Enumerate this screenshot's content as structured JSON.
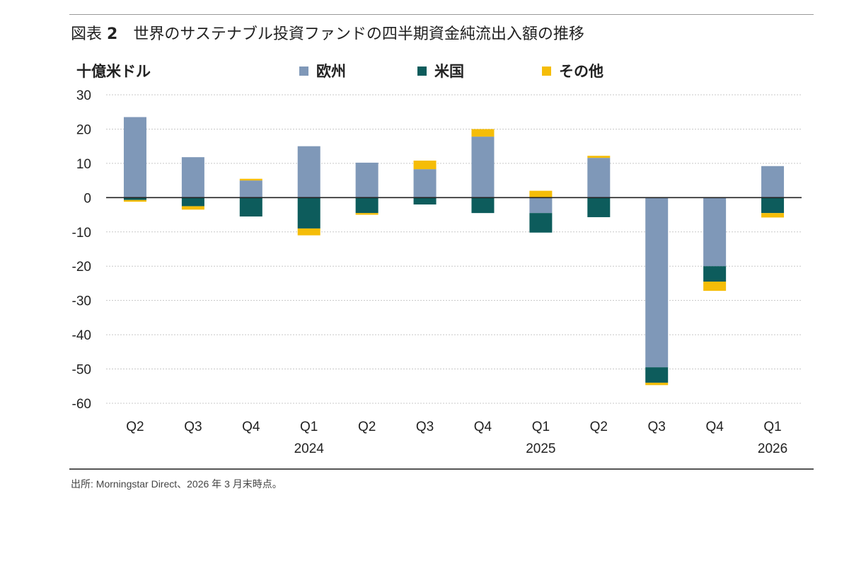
{
  "figure": {
    "label": "図表",
    "number": "2",
    "title": "世界のサステナブル投資ファンドの四半期資金純流出入額の推移",
    "source": "出所: Morningstar Direct、2026 年 3 月末時点。"
  },
  "chart_data": {
    "type": "bar",
    "stacked": true,
    "ylabel": "十億米ドル",
    "ylim": [
      -60,
      30
    ],
    "yticks": [
      30,
      20,
      10,
      0,
      -10,
      -20,
      -30,
      -40,
      -50,
      -60
    ],
    "grid": true,
    "legend_position": "top",
    "categories": [
      "Q2",
      "Q3",
      "Q4",
      "Q1",
      "Q2",
      "Q3",
      "Q4",
      "Q1",
      "Q2",
      "Q3",
      "Q4",
      "Q1"
    ],
    "year_labels": [
      "",
      "",
      "",
      "2024",
      "",
      "",
      "",
      "2025",
      "",
      "",
      "",
      "2026"
    ],
    "series": [
      {
        "name": "欧州",
        "color": "#7f98b8",
        "values": [
          23.5,
          11.8,
          5.0,
          15.0,
          10.2,
          8.3,
          17.8,
          -4.5,
          11.6,
          -49.5,
          -20.0,
          9.2
        ]
      },
      {
        "name": "米国",
        "color": "#0d5c5c",
        "values": [
          -0.7,
          -2.5,
          -5.5,
          -9.0,
          -4.5,
          -2.0,
          -4.5,
          -5.7,
          -5.7,
          -4.5,
          -4.5,
          -4.5
        ]
      },
      {
        "name": "その他",
        "color": "#f5bd08",
        "values": [
          -0.5,
          -1.0,
          0.5,
          -2.0,
          -0.5,
          2.5,
          2.2,
          2.0,
          0.6,
          -0.7,
          -2.7,
          -1.3
        ]
      }
    ]
  }
}
